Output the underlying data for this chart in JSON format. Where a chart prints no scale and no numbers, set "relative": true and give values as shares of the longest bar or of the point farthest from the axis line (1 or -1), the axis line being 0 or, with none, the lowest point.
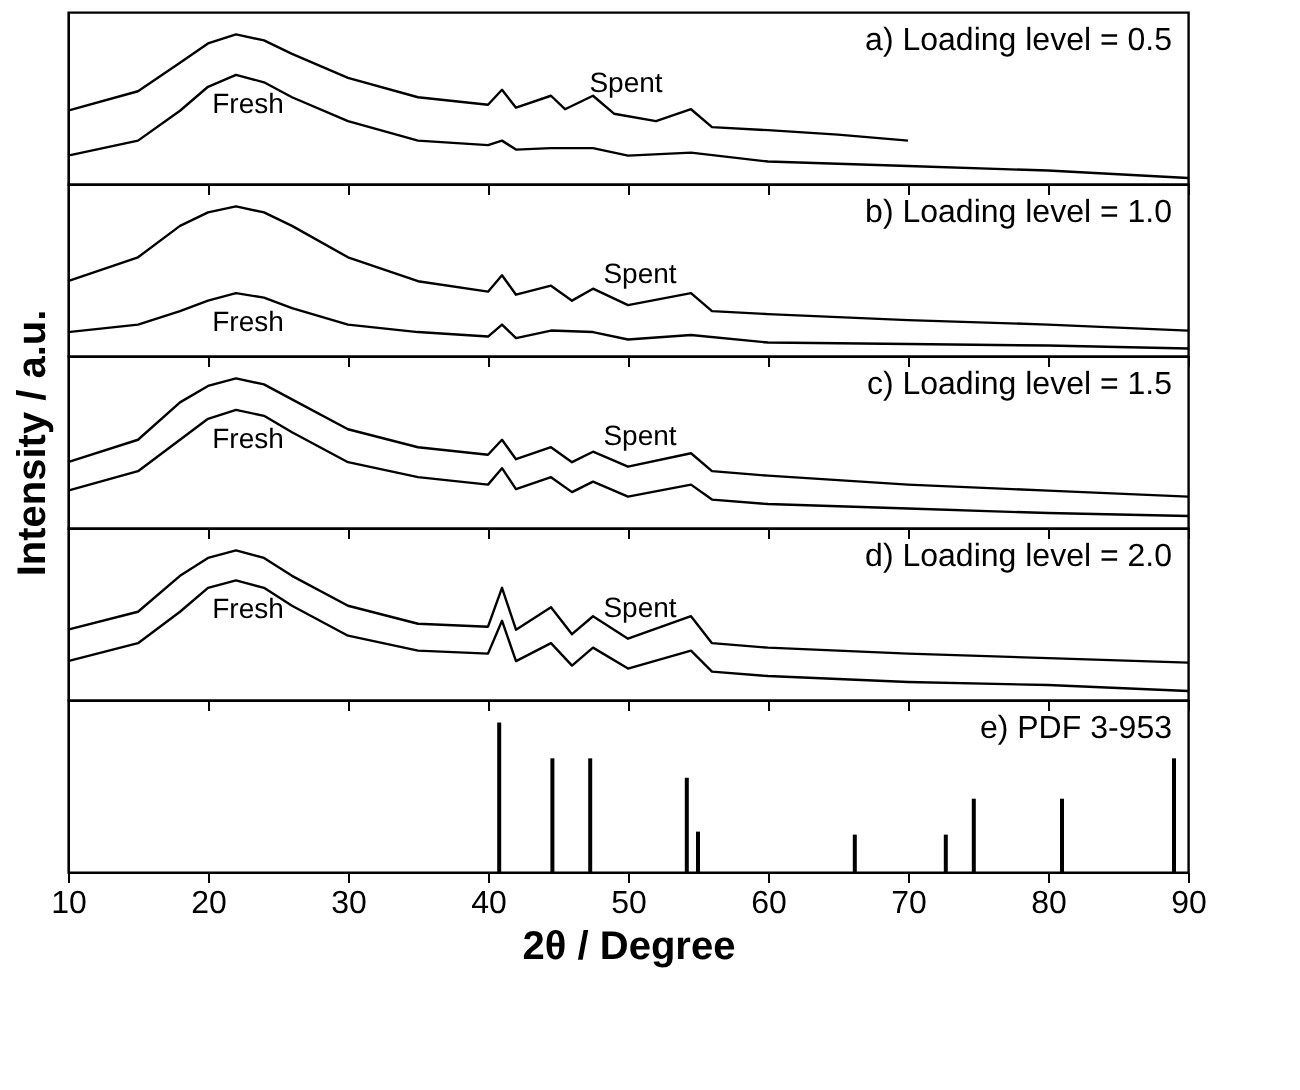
{
  "chart_data": [
    {
      "type": "line",
      "relative": true,
      "xlim": [
        10,
        90
      ],
      "xticks": [
        10,
        20,
        30,
        40,
        50,
        60,
        70,
        80,
        90
      ],
      "tick_labels": false,
      "annotations": [
        "a) Loading level = 0.5"
      ],
      "series": [
        {
          "name": "Spent",
          "color": "#000000",
          "x": [
            10,
            15,
            18,
            20,
            22,
            24,
            26,
            30,
            35,
            40,
            41,
            42,
            44.5,
            45.5,
            47.5,
            49,
            52,
            54.5,
            56,
            60,
            65,
            70
          ],
          "values": [
            0.49,
            0.62,
            0.81,
            0.94,
            1,
            0.96,
            0.87,
            0.71,
            0.58,
            0.53,
            0.63,
            0.51,
            0.59,
            0.5,
            0.59,
            0.47,
            0.42,
            0.5,
            0.38,
            0.36,
            0.33,
            0.29
          ]
        },
        {
          "name": "Fresh",
          "color": "#000000",
          "x": [
            10,
            15,
            18,
            20,
            22,
            24,
            26,
            30,
            35,
            40,
            41,
            42,
            44.5,
            47.5,
            50,
            54.5,
            60,
            70,
            80,
            90
          ],
          "values": [
            0.19,
            0.29,
            0.49,
            0.65,
            0.73,
            0.68,
            0.58,
            0.42,
            0.29,
            0.26,
            0.29,
            0.23,
            0.24,
            0.24,
            0.19,
            0.21,
            0.15,
            0.12,
            0.09,
            0.04
          ]
        }
      ]
    },
    {
      "type": "line",
      "relative": true,
      "xlim": [
        10,
        90
      ],
      "xticks": [
        10,
        20,
        30,
        40,
        50,
        60,
        70,
        80,
        90
      ],
      "tick_labels": false,
      "annotations": [
        "b) Loading level = 1.0"
      ],
      "series": [
        {
          "name": "Spent",
          "color": "#000000",
          "x": [
            10,
            15,
            18,
            20,
            22,
            24,
            26,
            30,
            35,
            40,
            41,
            42,
            44.5,
            46,
            47.5,
            50,
            54.5,
            56,
            60,
            70,
            80,
            90
          ],
          "values": [
            0.5,
            0.66,
            0.87,
            0.96,
            1,
            0.96,
            0.87,
            0.66,
            0.5,
            0.43,
            0.54,
            0.41,
            0.47,
            0.37,
            0.45,
            0.34,
            0.42,
            0.3,
            0.28,
            0.24,
            0.21,
            0.17
          ]
        },
        {
          "name": "Fresh",
          "color": "#000000",
          "x": [
            10,
            15,
            18,
            20,
            22,
            24,
            26,
            30,
            35,
            40,
            41,
            42,
            44.5,
            47.5,
            50,
            54.5,
            60,
            70,
            80,
            90
          ],
          "values": [
            0.16,
            0.21,
            0.3,
            0.37,
            0.42,
            0.39,
            0.32,
            0.21,
            0.16,
            0.13,
            0.21,
            0.12,
            0.17,
            0.16,
            0.11,
            0.14,
            0.09,
            0.08,
            0.07,
            0.05
          ]
        }
      ]
    },
    {
      "type": "line",
      "relative": true,
      "ylabel": "Intensity / a.u.",
      "xlim": [
        10,
        90
      ],
      "xticks": [
        10,
        20,
        30,
        40,
        50,
        60,
        70,
        80,
        90
      ],
      "tick_labels": false,
      "annotations": [
        "c) Loading level = 1.5"
      ],
      "series": [
        {
          "name": "Spent",
          "color": "#000000",
          "x": [
            10,
            15,
            18,
            20,
            22,
            24,
            26,
            30,
            35,
            40,
            41,
            42,
            44.5,
            46,
            47.5,
            50,
            54.5,
            56,
            60,
            70,
            80,
            90
          ],
          "values": [
            0.44,
            0.59,
            0.84,
            0.95,
            1,
            0.96,
            0.86,
            0.66,
            0.54,
            0.49,
            0.59,
            0.46,
            0.54,
            0.44,
            0.51,
            0.41,
            0.5,
            0.38,
            0.35,
            0.29,
            0.25,
            0.21
          ]
        },
        {
          "name": "Fresh",
          "color": "#000000",
          "x": [
            10,
            15,
            18,
            20,
            22,
            24,
            26,
            30,
            35,
            40,
            41,
            42,
            44.5,
            46,
            47.5,
            50,
            54.5,
            56,
            60,
            70,
            80,
            90
          ],
          "values": [
            0.25,
            0.38,
            0.59,
            0.73,
            0.79,
            0.75,
            0.64,
            0.44,
            0.34,
            0.29,
            0.4,
            0.26,
            0.34,
            0.24,
            0.31,
            0.21,
            0.29,
            0.19,
            0.16,
            0.13,
            0.1,
            0.08
          ]
        }
      ]
    },
    {
      "type": "line",
      "relative": true,
      "xlim": [
        10,
        90
      ],
      "xticks": [
        10,
        20,
        30,
        40,
        50,
        60,
        70,
        80,
        90
      ],
      "tick_labels": false,
      "annotations": [
        "d) Loading level = 2.0"
      ],
      "series": [
        {
          "name": "Spent",
          "color": "#000000",
          "x": [
            10,
            15,
            18,
            20,
            22,
            24,
            26,
            30,
            35,
            40,
            41,
            42,
            44.5,
            46,
            47.5,
            50,
            54.5,
            56,
            60,
            70,
            80,
            90
          ],
          "values": [
            0.47,
            0.59,
            0.83,
            0.95,
            1,
            0.95,
            0.83,
            0.63,
            0.51,
            0.49,
            0.75,
            0.47,
            0.62,
            0.44,
            0.56,
            0.41,
            0.56,
            0.38,
            0.35,
            0.31,
            0.28,
            0.25
          ]
        },
        {
          "name": "Fresh",
          "color": "#000000",
          "x": [
            10,
            15,
            18,
            20,
            22,
            24,
            26,
            30,
            35,
            40,
            41,
            42,
            44.5,
            46,
            47.5,
            50,
            54.5,
            56,
            60,
            70,
            80,
            90
          ],
          "values": [
            0.26,
            0.38,
            0.59,
            0.75,
            0.8,
            0.75,
            0.63,
            0.43,
            0.33,
            0.31,
            0.53,
            0.26,
            0.38,
            0.23,
            0.35,
            0.21,
            0.33,
            0.19,
            0.16,
            0.12,
            0.1,
            0.06
          ]
        }
      ]
    },
    {
      "type": "bar",
      "relative": true,
      "xlabel": "2θ / Degree",
      "xlim": [
        10,
        90
      ],
      "xticks": [
        10,
        20,
        30,
        40,
        50,
        60,
        70,
        80,
        90
      ],
      "tick_labels": "x",
      "annotations": [
        "e) PDF 3-953"
      ],
      "color": "#000000",
      "x": [
        40.8,
        44.6,
        47.3,
        54.2,
        55,
        66.2,
        72.7,
        74.7,
        81,
        89
      ],
      "values": [
        1,
        0.76,
        0.76,
        0.63,
        0.27,
        0.25,
        0.25,
        0.49,
        0.49,
        0.76
      ]
    }
  ]
}
